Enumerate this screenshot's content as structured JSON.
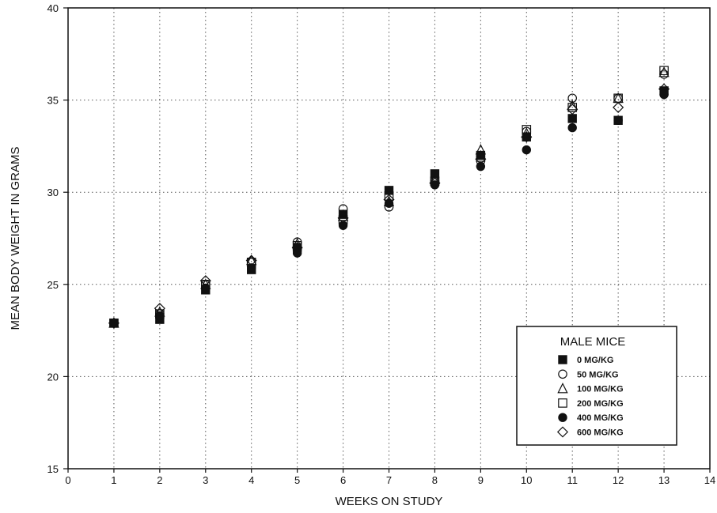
{
  "chart_data": {
    "type": "scatter",
    "title": "",
    "xlabel": "WEEKS ON STUDY",
    "ylabel": "MEAN BODY WEIGHT IN GRAMS",
    "xlim": [
      0,
      14
    ],
    "ylim": [
      15,
      40
    ],
    "xticks": [
      0,
      1,
      2,
      3,
      4,
      5,
      6,
      7,
      8,
      9,
      10,
      11,
      12,
      13,
      14
    ],
    "yticks": [
      15,
      20,
      25,
      30,
      35,
      40
    ],
    "grid": true,
    "legend": {
      "title": "MALE MICE",
      "placement": "bottom-right"
    },
    "series": [
      {
        "name": "0 MG/KG",
        "marker": "square-filled",
        "x": [
          1,
          2,
          3,
          4,
          5,
          6,
          7,
          8,
          9,
          10,
          11,
          12,
          13
        ],
        "y": [
          22.9,
          23.1,
          24.7,
          25.8,
          27.0,
          28.8,
          30.1,
          31.0,
          32.0,
          33.0,
          34.0,
          33.9,
          35.5
        ]
      },
      {
        "name": "50 MG/KG",
        "marker": "circle-open",
        "x": [
          1,
          2,
          3,
          4,
          5,
          6,
          7,
          8,
          9,
          10,
          11,
          12,
          13
        ],
        "y": [
          22.9,
          23.4,
          25.0,
          26.2,
          27.3,
          29.1,
          29.2,
          30.6,
          31.7,
          33.3,
          35.1,
          35.1,
          36.4
        ]
      },
      {
        "name": "100 MG/KG",
        "marker": "triangle-open",
        "x": [
          1,
          2,
          3,
          4,
          5,
          6,
          7,
          8,
          9,
          10,
          11,
          12,
          13
        ],
        "y": [
          22.9,
          23.5,
          25.0,
          26.3,
          27.2,
          28.7,
          29.5,
          30.7,
          32.3,
          33.2,
          34.7,
          35.1,
          36.5
        ]
      },
      {
        "name": "200 MG/KG",
        "marker": "square-open",
        "x": [
          1,
          2,
          3,
          4,
          5,
          6,
          7,
          8,
          9,
          10,
          11,
          12,
          13
        ],
        "y": [
          22.9,
          23.4,
          25.0,
          26.2,
          27.1,
          28.5,
          29.8,
          30.6,
          31.9,
          33.4,
          34.6,
          35.1,
          36.6
        ]
      },
      {
        "name": "400 MG/KG",
        "marker": "circle-filled",
        "x": [
          1,
          2,
          3,
          4,
          5,
          6,
          7,
          8,
          9,
          10,
          11,
          12,
          13
        ],
        "y": [
          22.9,
          23.3,
          24.8,
          25.9,
          26.7,
          28.2,
          29.4,
          30.4,
          31.4,
          32.3,
          33.5,
          33.9,
          35.3
        ]
      },
      {
        "name": "600 MG/KG",
        "marker": "diamond-open",
        "x": [
          1,
          2,
          3,
          4,
          5,
          6,
          7,
          8,
          9,
          10,
          11,
          12,
          13
        ],
        "y": [
          22.9,
          23.7,
          25.2,
          26.3,
          27.0,
          28.6,
          29.6,
          30.5,
          31.8,
          33.0,
          34.5,
          34.6,
          35.6
        ]
      }
    ]
  }
}
